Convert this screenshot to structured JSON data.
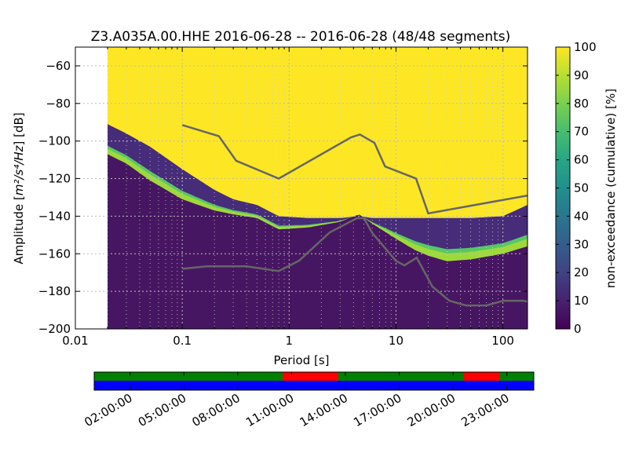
{
  "chart_data": {
    "type": "heatmap",
    "title": "Z3.A035A.00.HHE   2016-06-28 -- 2016-06-28  (48/48 segments)",
    "xlabel": "Period [s]",
    "ylabel_prefix": "Amplitude [",
    "ylabel_unit": "m²/s⁴/Hz",
    "ylabel_suffix": "] [dB]",
    "x_scale": "log",
    "xlim": [
      0.01,
      170
    ],
    "ylim": [
      -200,
      -50
    ],
    "x_ticks": [
      0.01,
      0.1,
      1,
      10,
      100
    ],
    "x_tick_labels": [
      "0.01",
      "0.1",
      "1",
      "10",
      "100"
    ],
    "y_ticks": [
      -200,
      -180,
      -160,
      -140,
      -120,
      -100,
      -80,
      -60
    ],
    "y_tick_labels": [
      "−200",
      "−180",
      "−160",
      "−140",
      "−120",
      "−100",
      "−80",
      "−60"
    ],
    "grid": true,
    "data_start_period": 0.02,
    "colorbar": {
      "label": "non-exceedance (cumulative) [%]",
      "range": [
        0,
        100
      ],
      "ticks": [
        0,
        10,
        20,
        30,
        40,
        50,
        60,
        70,
        80,
        90,
        100
      ],
      "tick_labels": [
        "0",
        "10",
        "20",
        "30",
        "40",
        "50",
        "60",
        "70",
        "80",
        "90",
        "100"
      ],
      "colormap": "viridis"
    },
    "distribution_boundaries": {
      "period": [
        0.02,
        0.03,
        0.05,
        0.1,
        0.2,
        0.3,
        0.5,
        0.8,
        1.5,
        3,
        4.5,
        6,
        10,
        15,
        20,
        30,
        50,
        100,
        170
      ],
      "yellow_lower": [
        -91,
        -96,
        -103,
        -115,
        -126,
        -131,
        -134,
        -140,
        -141,
        -141,
        -140,
        -141,
        -141,
        -141,
        -141,
        -141,
        -141,
        -140,
        -134
      ],
      "bulk_upper": [
        -107,
        -112,
        -121,
        -131,
        -137,
        -139,
        -141,
        -147,
        -146,
        -143,
        -139,
        -144,
        -152,
        -158,
        -161,
        -164,
        -163,
        -160,
        -156
      ]
    },
    "series": [
      {
        "name": "",
        "role": "high noise model",
        "x": [
          0.1,
          0.22,
          0.32,
          0.8,
          3.8,
          4.6,
          6.3,
          7.9,
          15.4,
          20,
          170
        ],
        "y": [
          -91.5,
          -97.4,
          -110.5,
          -120,
          -98,
          -96.5,
          -101,
          -113.5,
          -120,
          -138.5,
          -129
        ]
      },
      {
        "name": "",
        "role": "low noise model",
        "x": [
          0.1,
          0.17,
          0.4,
          0.8,
          1.24,
          2.4,
          4.3,
          5,
          6,
          10,
          12,
          15.6,
          21.9,
          31.6,
          45,
          70,
          101,
          154,
          170
        ],
        "y": [
          -168,
          -166.7,
          -166.7,
          -169.2,
          -163.7,
          -148.6,
          -141.1,
          -141.1,
          -149,
          -163.8,
          -166.2,
          -162.1,
          -177.5,
          -185,
          -187.5,
          -187.5,
          -185,
          -185,
          -185.4
        ]
      }
    ],
    "line_color": "#666666",
    "data_availability": {
      "x_tick_labels": [
        "02:00:00",
        "05:00:00",
        "08:00:00",
        "11:00:00",
        "14:00:00",
        "17:00:00",
        "20:00:00",
        "23:00:00"
      ],
      "x_tick_hours": [
        2,
        5,
        8,
        11,
        14,
        17,
        20,
        23
      ],
      "range_hours": [
        0,
        24.5
      ],
      "top_bar_color": "#008000",
      "gap_color": "#ff0000",
      "bottom_bar_color": "#0000ff",
      "gaps_hours": [
        [
          10.5,
          13.6
        ],
        [
          20.6,
          22.6
        ]
      ]
    }
  }
}
